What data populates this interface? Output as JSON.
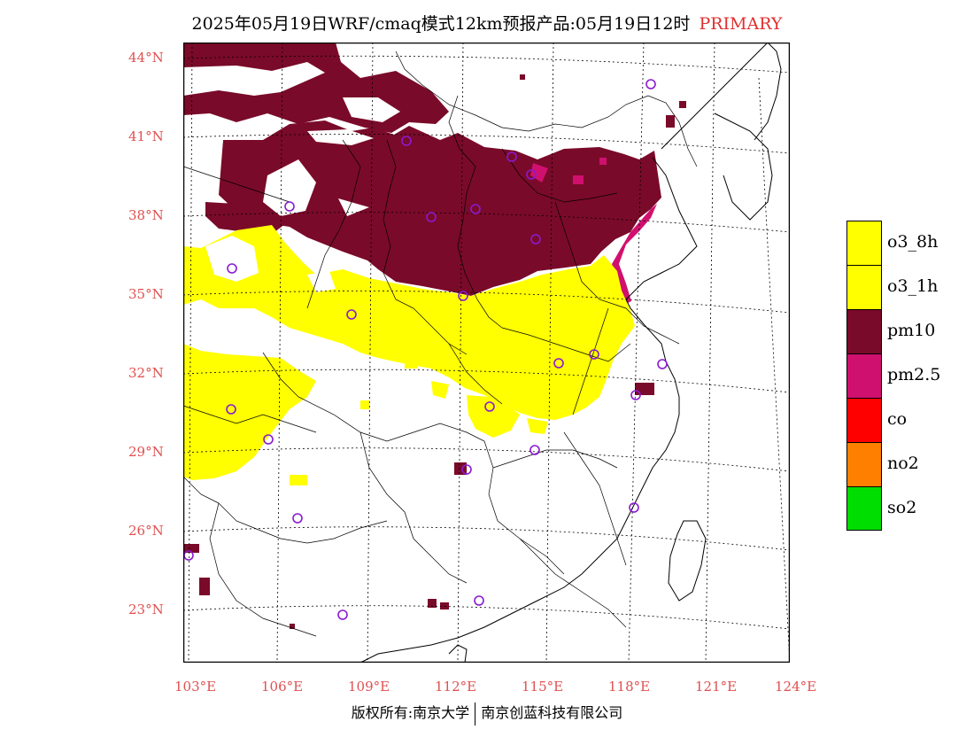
{
  "title": "2025年05月19日WRF/cmaq模式12km预报产品:05月19日12时",
  "badge": "PRIMARY",
  "lat_labels": [
    "44°N",
    "41°N",
    "38°N",
    "35°N",
    "32°N",
    "29°N",
    "26°N",
    "23°N"
  ],
  "lon_labels": [
    "103°E",
    "106°E",
    "109°E",
    "112°E",
    "115°E",
    "118°E",
    "121°E",
    "124°E"
  ],
  "legend": [
    {
      "label": "o3_8h",
      "color": "#ffff00"
    },
    {
      "label": "o3_1h",
      "color": "#ffff00"
    },
    {
      "label": "pm10",
      "color": "#7a0a2a"
    },
    {
      "label": "pm2.5",
      "color": "#d0106e"
    },
    {
      "label": "co",
      "color": "#ff0000"
    },
    {
      "label": "no2",
      "color": "#ff8000"
    },
    {
      "label": "so2",
      "color": "#00dd00"
    }
  ],
  "footer_left": "版权所有:南京大学",
  "footer_right": "南京创蓝科技有限公司",
  "colors": {
    "axis_label": "#e05050",
    "badge": "#e03030",
    "station": "#8a1ad0"
  }
}
